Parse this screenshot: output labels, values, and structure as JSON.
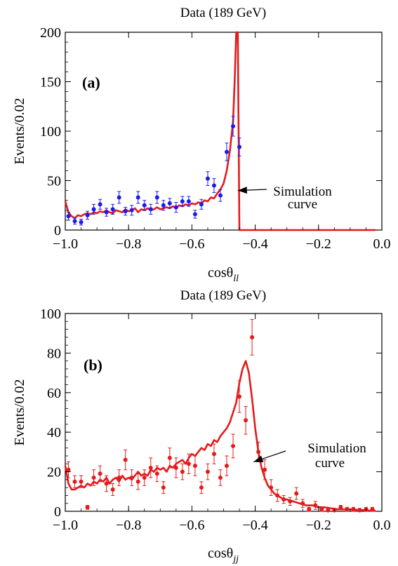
{
  "chart_data": [
    {
      "type": "line",
      "title": "Data (189 GeV)",
      "panel_label": "(a)",
      "xlabel": "cosθ",
      "xlabel_sub": "ll",
      "ylabel": "Events/0.02",
      "xlim": [
        -1.0,
        0.0
      ],
      "ylim": [
        0,
        200
      ],
      "xticks": [
        -1.0,
        -0.8,
        -0.6,
        -0.4,
        -0.2,
        0.0
      ],
      "xtick_labels": [
        "−1.0",
        "−0.8",
        "−0.6",
        "−0.4",
        "−0.2",
        "0.0"
      ],
      "yticks": [
        0,
        50,
        100,
        150,
        200
      ],
      "ytick_labels": [
        "0",
        "50",
        "100",
        "150",
        "200"
      ],
      "grid": false,
      "annotation": {
        "lines": [
          "Simulation",
          "curve"
        ],
        "arrow_to": [
          -0.455,
          40
        ]
      },
      "series": [
        {
          "kind": "curve",
          "color": "#e41a1c",
          "x": [
            -1.0,
            -0.99,
            -0.98,
            -0.97,
            -0.96,
            -0.95,
            -0.94,
            -0.93,
            -0.92,
            -0.91,
            -0.9,
            -0.89,
            -0.88,
            -0.87,
            -0.86,
            -0.85,
            -0.84,
            -0.83,
            -0.82,
            -0.81,
            -0.8,
            -0.79,
            -0.78,
            -0.77,
            -0.76,
            -0.75,
            -0.74,
            -0.73,
            -0.72,
            -0.71,
            -0.7,
            -0.69,
            -0.68,
            -0.67,
            -0.66,
            -0.65,
            -0.64,
            -0.63,
            -0.62,
            -0.61,
            -0.6,
            -0.59,
            -0.58,
            -0.57,
            -0.56,
            -0.55,
            -0.54,
            -0.53,
            -0.52,
            -0.51,
            -0.5,
            -0.49,
            -0.48,
            -0.47,
            -0.465,
            -0.46,
            -0.455,
            -0.45,
            -0.4,
            -0.3,
            -0.2,
            -0.1,
            -0.02
          ],
          "y": [
            29,
            18,
            14,
            12,
            15,
            14,
            16,
            17,
            16,
            18,
            17,
            19,
            18,
            20,
            18,
            17,
            20,
            19,
            18,
            21,
            19,
            20,
            22,
            18,
            21,
            20,
            22,
            20,
            21,
            23,
            21,
            22,
            23,
            22,
            24,
            22,
            25,
            24,
            26,
            25,
            27,
            26,
            28,
            27,
            30,
            29,
            33,
            32,
            37,
            41,
            47,
            60,
            80,
            110,
            150,
            200,
            200,
            0,
            0,
            0,
            0,
            0,
            0
          ]
        },
        {
          "kind": "points",
          "color": "#1a1aee",
          "x": [
            -0.99,
            -0.97,
            -0.95,
            -0.93,
            -0.91,
            -0.89,
            -0.87,
            -0.85,
            -0.83,
            -0.81,
            -0.79,
            -0.77,
            -0.75,
            -0.73,
            -0.71,
            -0.69,
            -0.67,
            -0.65,
            -0.63,
            -0.61,
            -0.59,
            -0.57,
            -0.55,
            -0.53,
            -0.51,
            -0.49,
            -0.47,
            -0.45
          ],
          "y": [
            14,
            9,
            8,
            15,
            21,
            26,
            18,
            21,
            33,
            19,
            20,
            33,
            25,
            21,
            33,
            25,
            27,
            23,
            29,
            29,
            16,
            26,
            52,
            45,
            35,
            79,
            105,
            84
          ],
          "err": [
            4,
            3,
            3,
            4,
            5,
            5,
            4,
            5,
            6,
            4,
            5,
            6,
            5,
            5,
            6,
            5,
            5,
            5,
            5,
            5,
            4,
            5,
            7,
            7,
            6,
            9,
            10,
            9
          ]
        }
      ]
    },
    {
      "type": "line",
      "title": "Data (189 GeV)",
      "panel_label": "(b)",
      "xlabel": "cosθ",
      "xlabel_sub": "jj",
      "ylabel": "Events/0.02",
      "xlim": [
        -1.0,
        0.0
      ],
      "ylim": [
        0,
        100
      ],
      "xticks": [
        -1.0,
        -0.8,
        -0.6,
        -0.4,
        -0.2,
        0.0
      ],
      "xtick_labels": [
        "−1.0",
        "−0.8",
        "−0.6",
        "−0.4",
        "−0.2",
        "0.0"
      ],
      "yticks": [
        0,
        20,
        40,
        60,
        80,
        100
      ],
      "ytick_labels": [
        "0",
        "20",
        "40",
        "60",
        "80",
        "100"
      ],
      "grid": false,
      "annotation": {
        "lines": [
          "Simulation",
          "curve"
        ],
        "arrow_to": [
          -0.405,
          25
        ]
      },
      "series": [
        {
          "kind": "curve",
          "color": "#e41a1c",
          "x": [
            -1.0,
            -0.99,
            -0.98,
            -0.97,
            -0.96,
            -0.95,
            -0.94,
            -0.93,
            -0.92,
            -0.91,
            -0.9,
            -0.89,
            -0.88,
            -0.87,
            -0.86,
            -0.85,
            -0.84,
            -0.83,
            -0.82,
            -0.81,
            -0.8,
            -0.79,
            -0.78,
            -0.77,
            -0.76,
            -0.75,
            -0.74,
            -0.73,
            -0.72,
            -0.71,
            -0.7,
            -0.69,
            -0.68,
            -0.67,
            -0.66,
            -0.65,
            -0.64,
            -0.63,
            -0.62,
            -0.61,
            -0.6,
            -0.59,
            -0.58,
            -0.57,
            -0.56,
            -0.55,
            -0.54,
            -0.53,
            -0.52,
            -0.51,
            -0.5,
            -0.49,
            -0.48,
            -0.47,
            -0.46,
            -0.45,
            -0.44,
            -0.43,
            -0.42,
            -0.41,
            -0.4,
            -0.39,
            -0.38,
            -0.37,
            -0.36,
            -0.35,
            -0.34,
            -0.33,
            -0.32,
            -0.31,
            -0.3,
            -0.28,
            -0.26,
            -0.24,
            -0.22,
            -0.2,
            -0.18,
            -0.16,
            -0.14,
            -0.12,
            -0.1,
            -0.08,
            -0.06,
            -0.04,
            -0.02
          ],
          "y": [
            23,
            14,
            11,
            11,
            12,
            13,
            12,
            14,
            13,
            15,
            14,
            16,
            15,
            17,
            14,
            16,
            17,
            15,
            18,
            16,
            17,
            16,
            18,
            20,
            18,
            19,
            18,
            21,
            20,
            22,
            21,
            22,
            20,
            23,
            22,
            24,
            25,
            26,
            24,
            27,
            29,
            28,
            30,
            32,
            31,
            34,
            33,
            36,
            35,
            38,
            40,
            42,
            45,
            50,
            55,
            65,
            72,
            76,
            70,
            57,
            42,
            30,
            22,
            17,
            13,
            11,
            9,
            8,
            7,
            6,
            6,
            5,
            4,
            3,
            3,
            2,
            2,
            1.5,
            1,
            1,
            1,
            0.8,
            0.6,
            0.4,
            0.3
          ]
        },
        {
          "kind": "points",
          "color": "#e41a1c",
          "x": [
            -0.99,
            -0.97,
            -0.95,
            -0.93,
            -0.91,
            -0.89,
            -0.87,
            -0.85,
            -0.83,
            -0.81,
            -0.79,
            -0.77,
            -0.75,
            -0.73,
            -0.71,
            -0.69,
            -0.67,
            -0.65,
            -0.63,
            -0.61,
            -0.59,
            -0.57,
            -0.55,
            -0.53,
            -0.51,
            -0.49,
            -0.47,
            -0.45,
            -0.43,
            -0.41,
            -0.39,
            -0.37,
            -0.35,
            -0.33,
            -0.31,
            -0.29,
            -0.27,
            -0.25,
            -0.23,
            -0.21,
            -0.19,
            -0.17,
            -0.15,
            -0.13,
            -0.11,
            -0.09,
            -0.07,
            -0.05,
            -0.03
          ],
          "y": [
            21,
            15,
            15,
            2,
            17,
            19,
            14,
            11,
            17,
            26,
            17,
            15,
            17,
            22,
            19,
            12,
            27,
            22,
            20,
            24,
            23,
            12,
            20,
            29,
            17,
            23,
            33,
            58,
            46,
            88,
            30,
            21,
            12,
            8,
            6,
            5,
            9,
            4,
            1,
            3,
            1,
            0.5,
            0.5,
            2,
            1,
            1,
            0.5,
            1,
            1
          ],
          "err": [
            4,
            3,
            3,
            1,
            4,
            4,
            4,
            3,
            4,
            5,
            4,
            4,
            4,
            5,
            4,
            3,
            5,
            5,
            4,
            5,
            5,
            3,
            4,
            5,
            4,
            5,
            6,
            8,
            7,
            9,
            5,
            5,
            4,
            3,
            2,
            2,
            3,
            2,
            1,
            2,
            1,
            1,
            1,
            1,
            1,
            1,
            1,
            1,
            1
          ]
        }
      ]
    }
  ]
}
